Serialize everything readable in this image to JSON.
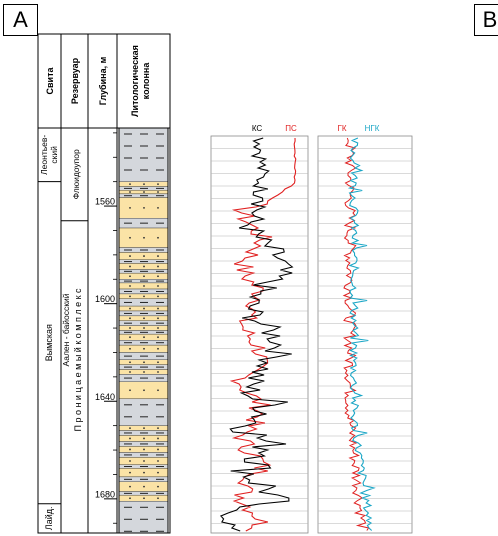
{
  "panels": {
    "left": "A",
    "right": "B"
  },
  "columns": {
    "suite": "Свита",
    "reservoir": "Резервуар",
    "depth": "Глубина, м",
    "lithology": "Литологическая колонна"
  },
  "suites": [
    {
      "name": "Леонтьев-ский",
      "top": 1528,
      "bottom": 1550
    },
    {
      "name": "Вымская",
      "top": 1550,
      "bottom": 1682
    },
    {
      "name": "Лайд.",
      "top": 1682,
      "bottom": 1694
    }
  ],
  "reservoirs": [
    {
      "name": "Флюидоупор",
      "top": 1528,
      "bottom": 1566
    },
    {
      "name": "Аален - байосский",
      "top": 1566,
      "bottom": 1694
    },
    {
      "name": "П р о н и ц а е м ы й   к о м п л е к с",
      "top": 1566,
      "bottom": 1694
    }
  ],
  "depth_scale": {
    "min": 1528,
    "max": 1694,
    "ticks": [
      1560,
      1600,
      1640,
      1680
    ]
  },
  "logs": {
    "track1": {
      "ks": "КС",
      "ps": "ПС"
    },
    "track2": {
      "gk": "ГК",
      "ngk": "НГК"
    }
  },
  "colors": {
    "sand": "#fbe3a6",
    "clay": "#d4d7dc",
    "ks": "#000000",
    "ps": "#e02020",
    "gk": "#e02020",
    "ngk": "#1aa6c6",
    "grid": "#b5b5b5"
  }
}
